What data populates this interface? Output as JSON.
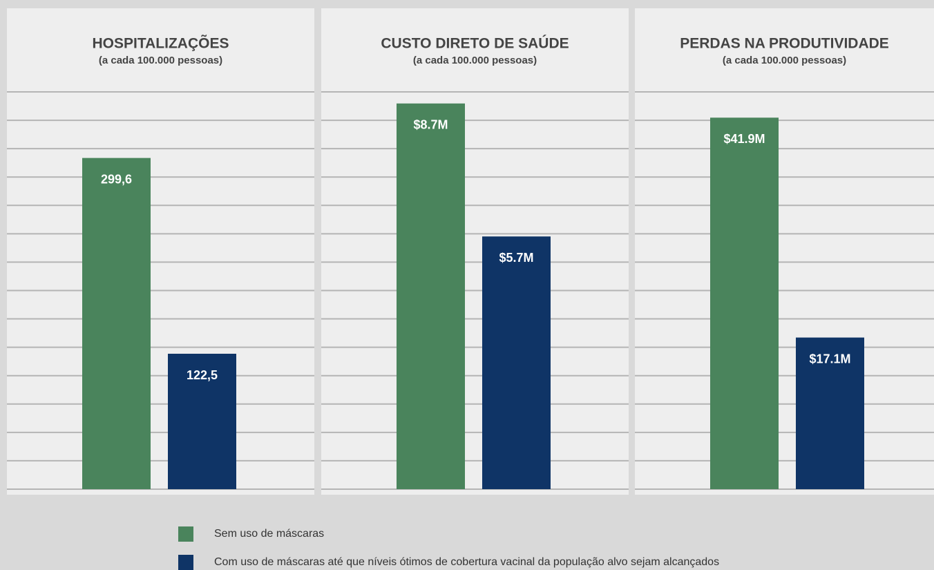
{
  "chart_data": [
    {
      "type": "bar",
      "title": "HOSPITALIZAÇÕES",
      "subtitle": "(a cada 100.000 pessoas)",
      "values": [
        299.6,
        122.5
      ],
      "value_labels": [
        "299,6",
        "122,5"
      ],
      "ylim": [
        0,
        385
      ],
      "grid": true
    },
    {
      "type": "bar",
      "title": "CUSTO DIRETO DE SAÚDE",
      "subtitle": "(a cada 100.000 pessoas)",
      "values": [
        8700000,
        5700000
      ],
      "value_labels": [
        "$8.7M",
        "$5.7M"
      ],
      "ylim": [
        0,
        9600000
      ],
      "grid": true
    },
    {
      "type": "bar",
      "title": "PERDAS NA PRODUTIVIDADE",
      "subtitle": "(a cada 100.000 pessoas)",
      "values": [
        41900000,
        17100000
      ],
      "value_labels": [
        "$41.9M",
        "$17.1M"
      ],
      "ylim": [
        0,
        48000000
      ],
      "grid": true
    }
  ],
  "legend": {
    "items": [
      {
        "name": "Sem uso de máscaras",
        "color": "#4a845c"
      },
      {
        "name": "Com uso de máscaras até que níveis ótimos de cobertura vacinal da população alvo sejam alcançados",
        "color": "#0f3466"
      }
    ]
  }
}
